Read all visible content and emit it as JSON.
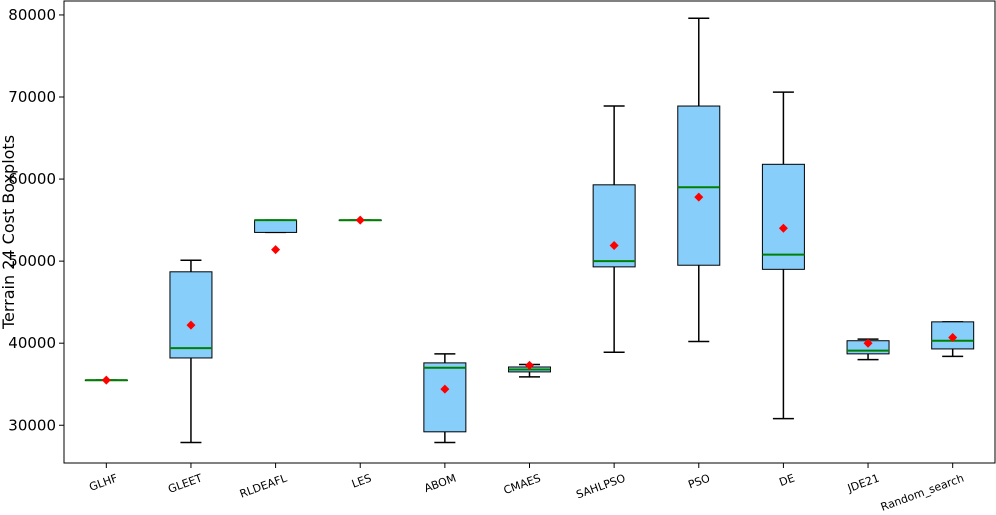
{
  "chart_data": {
    "type": "boxplot",
    "ylabel": "Terrain 24 Cost Boxplots",
    "xlabel": "",
    "ylim": [
      25400,
      81700
    ],
    "yticks": [
      30000,
      40000,
      50000,
      60000,
      70000,
      80000
    ],
    "ytick_labels": [
      "30000",
      "40000",
      "50000",
      "60000",
      "70000",
      "80000"
    ],
    "grid": false,
    "colors": {
      "box_fill": "#87cefa",
      "median": "#008000",
      "mean": "#ff0000",
      "line": "#000000"
    },
    "series": [
      {
        "name": "GLHF",
        "whisker_low": 35500,
        "q1": 35500,
        "median": 35500,
        "q3": 35500,
        "whisker_high": 35500,
        "mean": 35500
      },
      {
        "name": "GLEET",
        "whisker_low": 27900,
        "q1": 38200,
        "median": 39400,
        "q3": 48700,
        "whisker_high": 50100,
        "mean": 42200
      },
      {
        "name": "RLDEAFL",
        "whisker_low": 53500,
        "q1": 53500,
        "median": 55000,
        "q3": 55000,
        "whisker_high": 55000,
        "mean": 51400
      },
      {
        "name": "LES",
        "whisker_low": 55000,
        "q1": 55000,
        "median": 55000,
        "q3": 55000,
        "whisker_high": 55000,
        "mean": 55000
      },
      {
        "name": "ABOM",
        "whisker_low": 27900,
        "q1": 29200,
        "median": 37000,
        "q3": 37600,
        "whisker_high": 38700,
        "mean": 34400
      },
      {
        "name": "CMAES",
        "whisker_low": 35900,
        "q1": 36500,
        "median": 36800,
        "q3": 37100,
        "whisker_high": 37400,
        "mean": 37300
      },
      {
        "name": "SAHLPSO",
        "whisker_low": 38900,
        "q1": 49300,
        "median": 50000,
        "q3": 59300,
        "whisker_high": 68900,
        "mean": 51900
      },
      {
        "name": "PSO",
        "whisker_low": 40200,
        "q1": 49500,
        "median": 59000,
        "q3": 68900,
        "whisker_high": 79600,
        "mean": 57800
      },
      {
        "name": "DE",
        "whisker_low": 30800,
        "q1": 49000,
        "median": 50800,
        "q3": 61800,
        "whisker_high": 70600,
        "mean": 54000
      },
      {
        "name": "JDE21",
        "whisker_low": 38000,
        "q1": 38700,
        "median": 39100,
        "q3": 40300,
        "whisker_high": 40500,
        "mean": 40000
      },
      {
        "name": "Random_search",
        "whisker_low": 38400,
        "q1": 39300,
        "median": 40300,
        "q3": 42600,
        "whisker_high": 42600,
        "mean": 40700
      }
    ]
  }
}
